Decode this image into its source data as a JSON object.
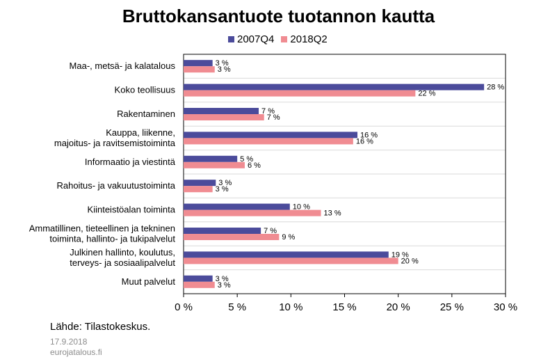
{
  "chart_data": {
    "type": "bar",
    "orientation": "horizontal",
    "title": "Bruttokansantuote tuotannon kautta",
    "categories": [
      [
        "Maa-, metsä- ja kalatalous"
      ],
      [
        "Koko teollisuus"
      ],
      [
        "Rakentaminen"
      ],
      [
        "Kauppa, liikenne,",
        "majoitus- ja ravitsemistoiminta"
      ],
      [
        "Informaatio ja viestintä"
      ],
      [
        "Rahoitus- ja vakuutustoiminta"
      ],
      [
        "Kiinteistöalan toiminta"
      ],
      [
        "Ammatillinen, tieteellinen ja tekninen",
        "toiminta, hallinto- ja tukipalvelut"
      ],
      [
        "Julkinen hallinto, koulutus,",
        "terveys- ja sosiaalipalvelut"
      ],
      [
        "Muut palvelut"
      ]
    ],
    "series": [
      {
        "name": "2007Q4",
        "color": "#4b4b9b",
        "values": [
          2.7,
          28.0,
          7.0,
          16.2,
          5.0,
          3.0,
          9.9,
          7.2,
          19.1,
          2.7
        ],
        "labels": [
          "3 %",
          "28 %",
          "7 %",
          "16 %",
          "5 %",
          "3 %",
          "10 %",
          "7 %",
          "19 %",
          "3 %"
        ]
      },
      {
        "name": "2018Q2",
        "color": "#f08c92",
        "values": [
          2.9,
          21.6,
          7.5,
          15.8,
          5.7,
          2.7,
          12.8,
          8.9,
          20.0,
          2.9
        ],
        "labels": [
          "3 %",
          "22 %",
          "7 %",
          "16 %",
          "6 %",
          "3 %",
          "13 %",
          "9 %",
          "20 %",
          "3 %"
        ]
      }
    ],
    "xlim": [
      0,
      30
    ],
    "xticks": [
      0,
      5,
      10,
      15,
      20,
      25,
      30
    ],
    "xtick_labels": [
      "0 %",
      "5 %",
      "10 %",
      "15 %",
      "20 %",
      "25 %",
      "30 %"
    ],
    "grid": "horizontal",
    "legend_position": "top"
  },
  "footer": {
    "source": "Lähde: Tilastokeskus.",
    "date": "17.9.2018",
    "site": "eurojatalous.fi"
  }
}
